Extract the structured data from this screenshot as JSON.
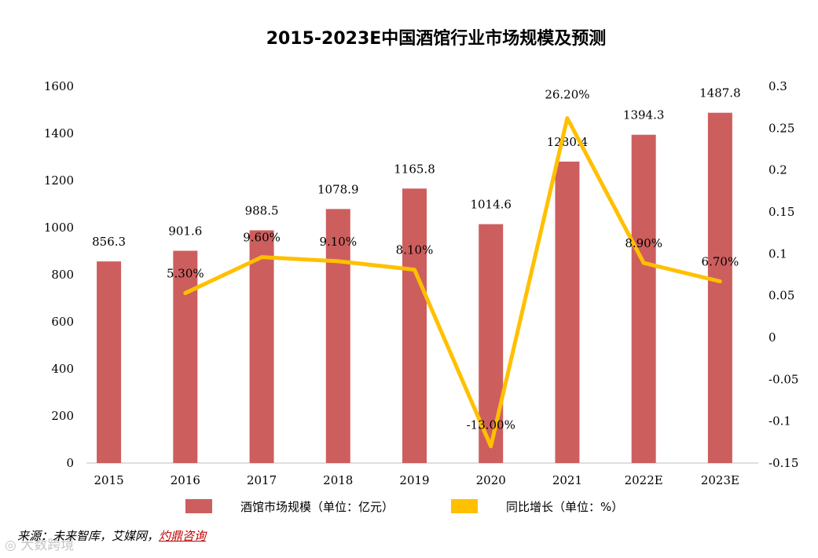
{
  "chart_data": {
    "type": "bar",
    "title": "2015-2023E中国酒馆行业市场规模及预测",
    "categories": [
      "2015",
      "2016",
      "2017",
      "2018",
      "2019",
      "2020",
      "2021",
      "2022E",
      "2023E"
    ],
    "series": [
      {
        "name": "酒馆市场规模（单位：亿元）",
        "type": "bar",
        "axis": "left",
        "color": "#cd5e5e",
        "values": [
          856.3,
          901.6,
          988.5,
          1078.9,
          1165.8,
          1014.6,
          1280.4,
          1394.3,
          1487.8
        ],
        "labels": [
          "856.3",
          "901.6",
          "988.5",
          "1078.9",
          "1165.8",
          "1014.6",
          "1280.4",
          "1394.3",
          "1487.8"
        ]
      },
      {
        "name": "同比增长（单位：%）",
        "type": "line",
        "axis": "right",
        "color": "#ffc000",
        "values": [
          null,
          0.053,
          0.096,
          0.091,
          0.081,
          -0.13,
          0.262,
          0.089,
          0.067
        ],
        "labels": [
          "",
          "5.30%",
          "9.60%",
          "9.10%",
          "8.10%",
          "-13.00%",
          "26.20%",
          "8.90%",
          "6.70%"
        ]
      }
    ],
    "y_left": {
      "min": 0,
      "max": 1600,
      "ticks": [
        "0",
        "200",
        "400",
        "600",
        "800",
        "1000",
        "1200",
        "1400",
        "1600"
      ]
    },
    "y_right": {
      "min": -0.15,
      "max": 0.3,
      "ticks": [
        "-0.15",
        "-0.1",
        "-0.05",
        "0",
        "0.05",
        "0.1",
        "0.15",
        "0.2",
        "0.25",
        "0.3"
      ]
    },
    "grid": false,
    "legend_position": "bottom"
  },
  "source": {
    "prefix": "来源：",
    "text": "未来智库，艾媒网，",
    "highlight": "灼鼎咨询"
  },
  "watermark": "◎ 大数跨境"
}
